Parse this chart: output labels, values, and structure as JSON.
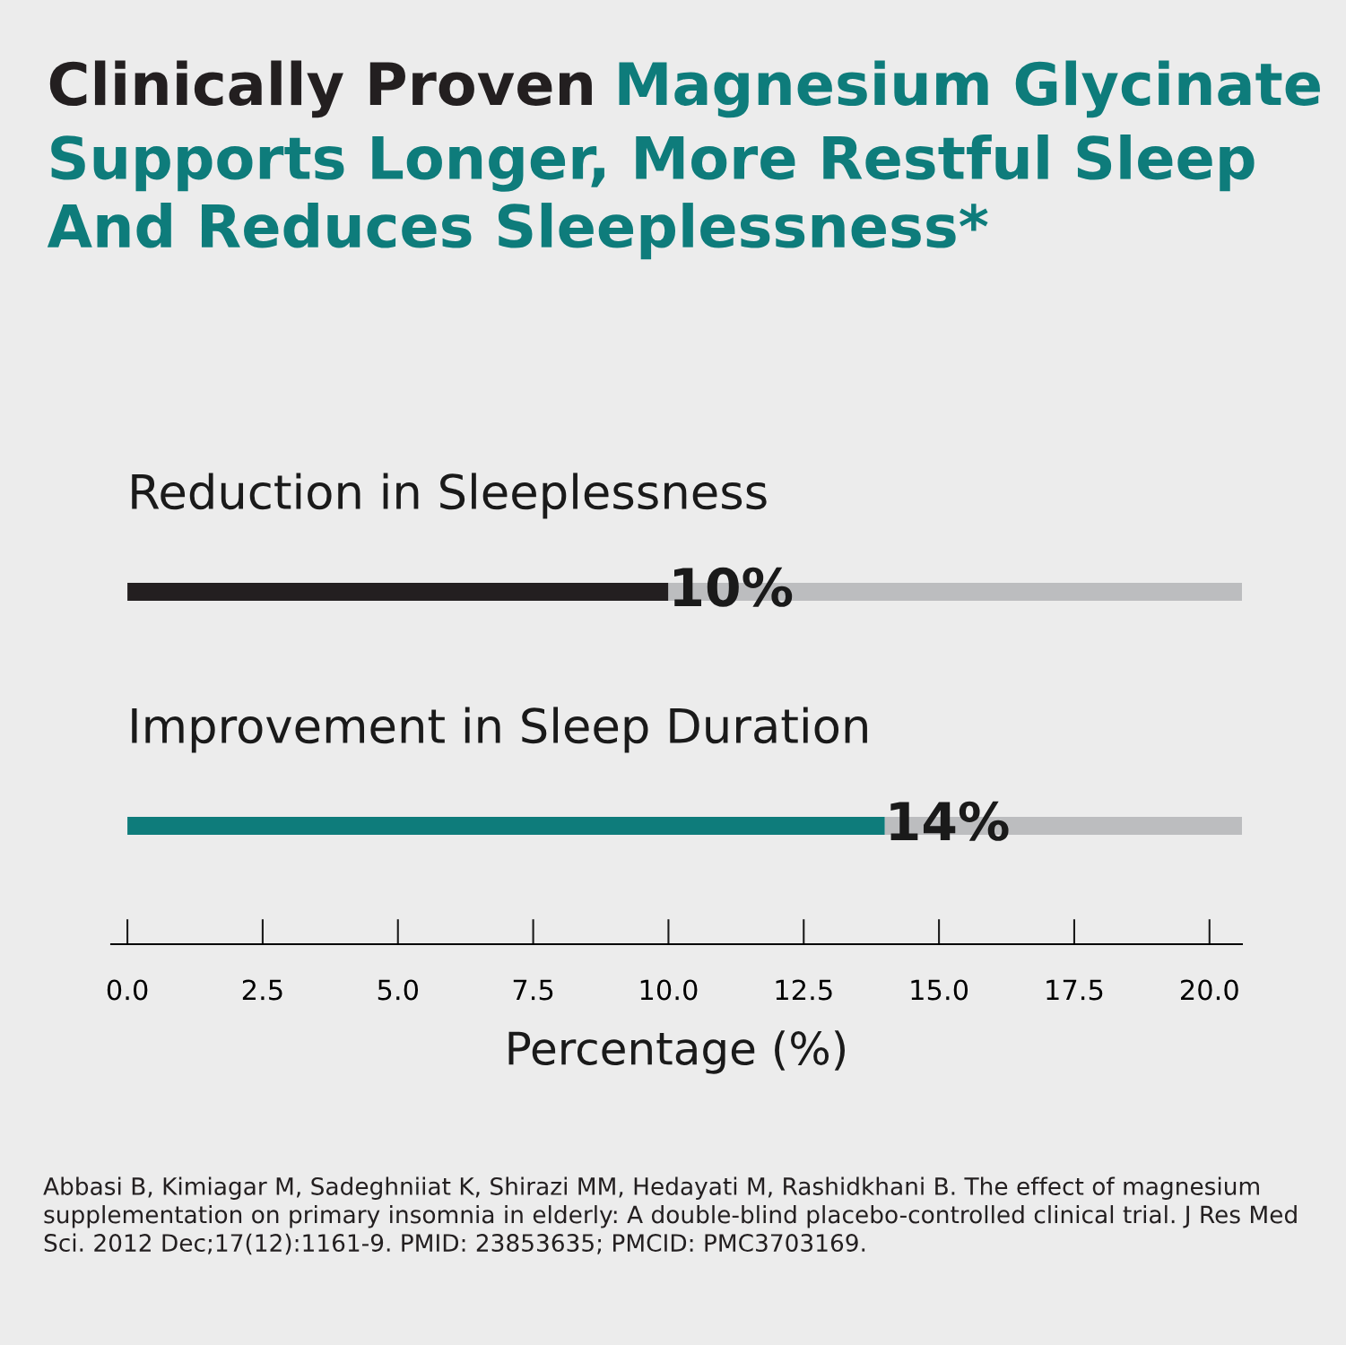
{
  "chart_data": {
    "type": "bar",
    "orientation": "horizontal",
    "stacked": true,
    "title": "Clinically Proven",
    "subtitle": "Magnesium Glycinate\nSupports Longer, More Restful Sleep\nAnd Reduces Sleeplessness*",
    "xlabel": "Percentage (%)",
    "categories": [
      "Reduction in Sleeplessness",
      "Improvement in Sleep Duration"
    ],
    "series": [
      {
        "colors": [
          "#231f20",
          "#0e7c7b"
        ],
        "values": [
          10,
          14
        ],
        "value_labels": [
          "10%",
          "14%"
        ]
      },
      {
        "color": "#bcbdbf",
        "values": [
          10.6,
          6.6
        ]
      }
    ],
    "xlim": [
      -0.3,
      20.6
    ],
    "xticks": [
      {
        "value": 0,
        "label": "0.0"
      },
      2.5,
      {
        "value": 5,
        "label": "5.0"
      },
      7.5,
      {
        "value": 10,
        "label": "10.0"
      },
      12.5,
      {
        "value": 15,
        "label": "15.0"
      },
      17.5,
      {
        "value": 20,
        "label": "20.0"
      }
    ],
    "grid": false,
    "legend": false,
    "annotations": [
      "Abbasi B, Kimiagar M, Sadeghniiat K, Shirazi MM, Hedayati M, Rashidkhani B. The effect of magnesium supplementation on primary insomnia in elderly: A double-blind placebo-controlled clinical trial. J Res Med Sci. 2012 Dec;17(12):1161-9. PMID: 23853635; PMCID: PMC3703169."
    ]
  }
}
